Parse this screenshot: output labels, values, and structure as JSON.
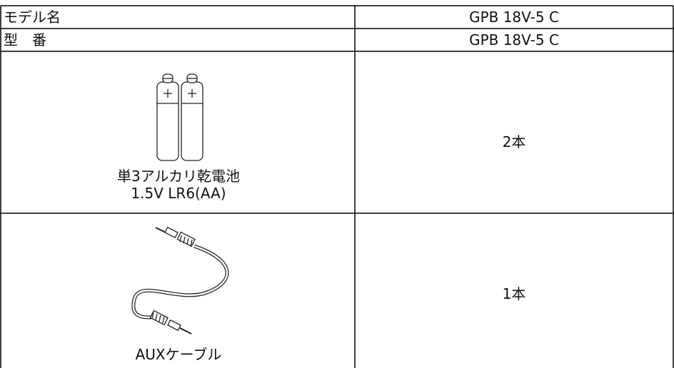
{
  "table": {
    "rows": [
      {
        "item": "モデル名",
        "value": "GPB 18V-5 C"
      },
      {
        "item": "型　番",
        "value": "GPB 18V-5 C"
      },
      {
        "caption": [
          "単3アルカリ乾電池",
          "1.5V LR6(AA)"
        ],
        "value": "2本"
      },
      {
        "caption": [
          "AUXケーブル"
        ],
        "value": "1本"
      }
    ]
  }
}
